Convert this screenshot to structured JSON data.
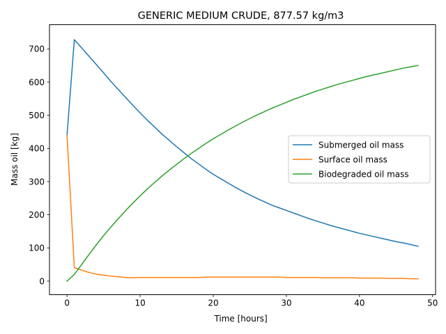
{
  "chart_data": {
    "type": "line",
    "title": "GENERIC MEDIUM CRUDE,  877.57 kg/m3",
    "xlabel": "Time [hours]",
    "ylabel": "Mass oil [kg]",
    "xlim": [
      -2.4,
      50.4
    ],
    "ylim": [
      -41,
      773
    ],
    "xticks": [
      0,
      10,
      20,
      30,
      40,
      50
    ],
    "yticks": [
      0,
      100,
      200,
      300,
      400,
      500,
      600,
      700
    ],
    "grid": false,
    "legend_position": "center-right",
    "x": [
      0,
      1,
      2,
      3,
      4,
      5,
      6,
      7,
      8,
      9,
      10,
      11,
      12,
      13,
      14,
      15,
      16,
      17,
      18,
      19,
      20,
      21,
      22,
      23,
      24,
      25,
      26,
      27,
      28,
      29,
      30,
      31,
      32,
      33,
      34,
      35,
      36,
      37,
      38,
      39,
      40,
      41,
      42,
      43,
      44,
      45,
      46,
      47,
      48
    ],
    "series": [
      {
        "name": "Submerged oil mass",
        "color": "#1f77b4",
        "values": [
          440,
          728,
          703,
          678,
          653,
          628,
          602,
          578,
          554,
          530,
          507,
          485,
          464,
          443,
          424,
          405,
          387,
          369,
          353,
          337,
          322,
          309,
          296,
          283,
          271,
          260,
          249,
          239,
          229,
          221,
          213,
          205,
          197,
          189,
          182,
          175,
          168,
          162,
          156,
          150,
          144,
          139,
          134,
          129,
          124,
          119,
          115,
          110,
          105
        ]
      },
      {
        "name": "Surface oil mass",
        "color": "#ff7f0e",
        "values": [
          440,
          40,
          33,
          26,
          21,
          18,
          15,
          13,
          11,
          10,
          11,
          11,
          11,
          11,
          11,
          11,
          11,
          11,
          11,
          12,
          12,
          12,
          12,
          12,
          12,
          12,
          12,
          12,
          12,
          12,
          11,
          11,
          11,
          11,
          11,
          10,
          10,
          10,
          10,
          10,
          9,
          9,
          9,
          9,
          8,
          8,
          8,
          7,
          7
        ]
      },
      {
        "name": "Biodegraded oil mass",
        "color": "#2ca02c",
        "values": [
          0,
          20,
          50,
          80,
          109,
          137,
          163,
          188,
          212,
          235,
          257,
          278,
          298,
          317,
          335,
          352,
          369,
          385,
          400,
          415,
          429,
          442,
          455,
          467,
          479,
          490,
          501,
          511,
          521,
          530,
          539,
          548,
          556,
          564,
          572,
          579,
          586,
          593,
          599,
          605,
          611,
          617,
          622,
          627,
          632,
          637,
          642,
          646,
          650
        ]
      }
    ]
  }
}
